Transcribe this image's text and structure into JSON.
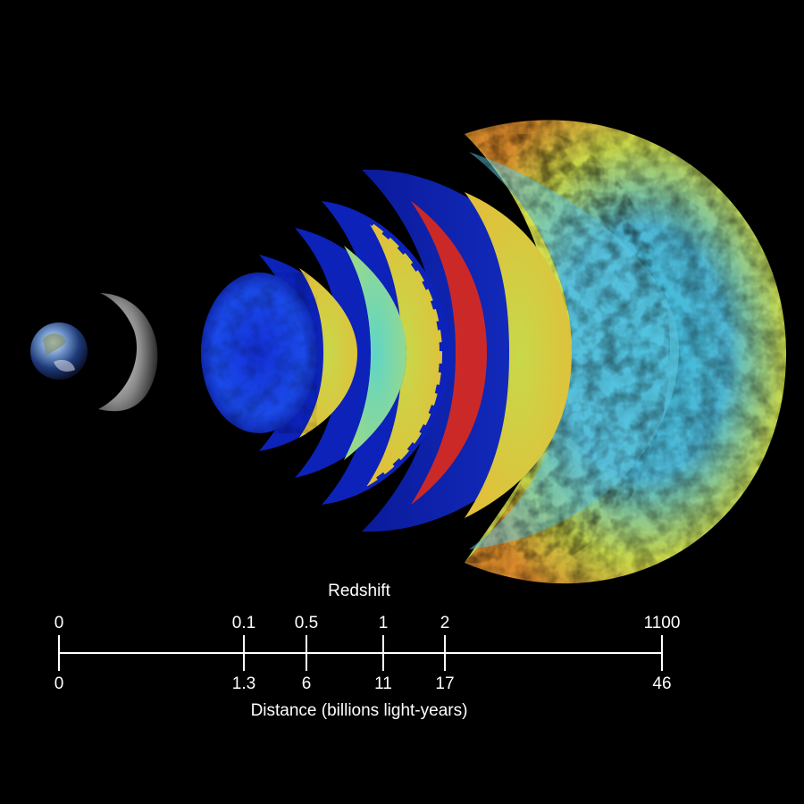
{
  "scale": {
    "top_title": "Redshift",
    "bottom_title": "Distance (billions light-years)",
    "ticks": [
      {
        "redshift": "0",
        "distance": "0"
      },
      {
        "redshift": "0.1",
        "distance": "1.3"
      },
      {
        "redshift": "0.5",
        "distance": "6"
      },
      {
        "redshift": "1",
        "distance": "11"
      },
      {
        "redshift": "2",
        "distance": "17"
      },
      {
        "redshift": "1100",
        "distance": "46"
      }
    ]
  },
  "colors": {
    "background": "#000000",
    "axis": "#ffffff",
    "cmb_hot": "#e8231b",
    "cmb_warm": "#f0e040",
    "cmb_mid": "#3fd0c8",
    "cmb_cold": "#1a3fd6",
    "shell_blue": "#0a1fa8"
  }
}
